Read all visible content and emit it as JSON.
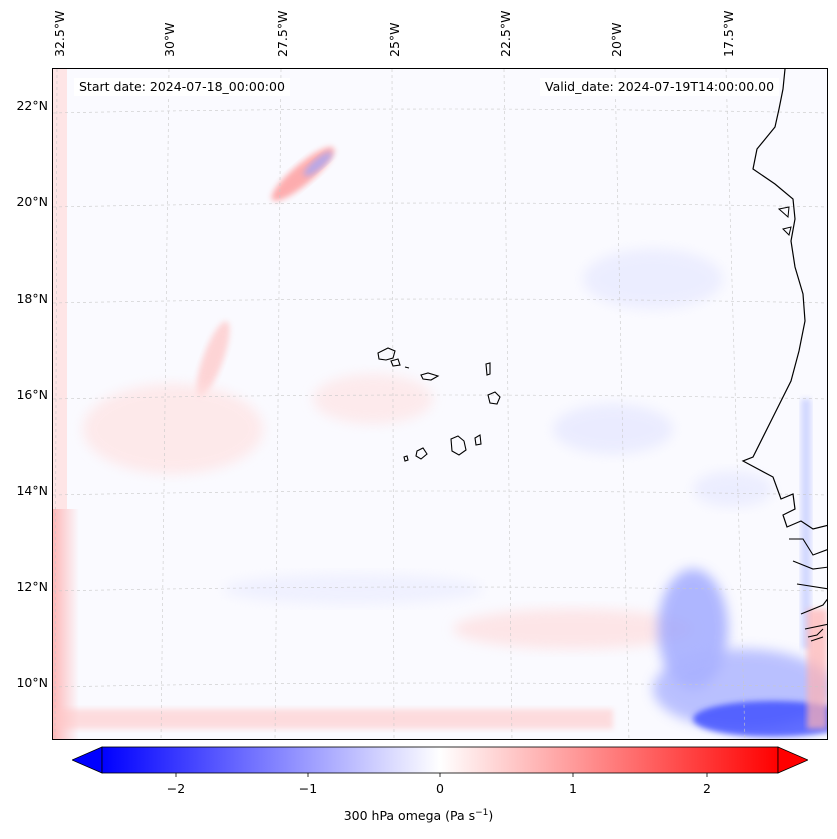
{
  "map": {
    "lon_labels": [
      "32.5°W",
      "30°W",
      "27.5°W",
      "25°W",
      "22.5°W",
      "20°W",
      "17.5°W"
    ],
    "lat_labels": [
      "22°N",
      "20°N",
      "18°N",
      "16°N",
      "14°N",
      "12°N",
      "10°N"
    ],
    "start_date_text": "Start date: 2024-07-18_00:00:00",
    "valid_date_text": "Valid_date: 2024-07-19T14:00:00.00",
    "extent": {
      "lon_min": -33.0,
      "lon_max": -16.0,
      "lat_min": 8.9,
      "lat_max": 22.8
    },
    "field_colors": {
      "negative": "#0000ff",
      "zero": "#ffffff",
      "positive": "#ff0000"
    }
  },
  "colorbar": {
    "ticks": [
      "−2",
      "−1",
      "0",
      "1",
      "2"
    ],
    "tick_values": [
      -2,
      -1,
      0,
      1,
      2
    ],
    "range": [
      -2.5,
      2.5
    ],
    "label_main": "300 hPa omega (Pa s",
    "label_sup": "−1",
    "label_end": ")"
  }
}
